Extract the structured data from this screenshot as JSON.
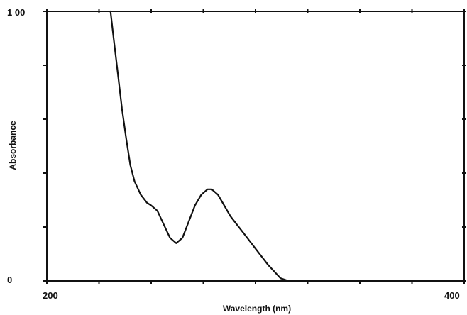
{
  "chart_data": {
    "type": "line",
    "title": "",
    "xlabel": "Wavelength (nm)",
    "ylabel": "Absorbance",
    "xlim": [
      200,
      400
    ],
    "ylim": [
      0,
      1.0
    ],
    "x_tick_labels": [
      "200",
      "400"
    ],
    "y_tick_labels": [
      "0",
      "1 00"
    ],
    "grid": false,
    "legend": "none",
    "line_color": "#111111",
    "series": [
      {
        "x": [
          230.5,
          232,
          234,
          236,
          238,
          240,
          242,
          245,
          248,
          250,
          253,
          256,
          259,
          262,
          265,
          268,
          271,
          274,
          277,
          279,
          282,
          285,
          288,
          291,
          294,
          297,
          300,
          303,
          306,
          309,
          312,
          315,
          318,
          320
        ],
        "y": [
          1.0,
          0.9,
          0.77,
          0.64,
          0.53,
          0.43,
          0.37,
          0.32,
          0.29,
          0.28,
          0.26,
          0.21,
          0.16,
          0.14,
          0.16,
          0.22,
          0.28,
          0.32,
          0.34,
          0.34,
          0.32,
          0.28,
          0.24,
          0.21,
          0.18,
          0.15,
          0.12,
          0.09,
          0.06,
          0.035,
          0.01,
          0.002,
          0.0,
          0.0
        ]
      },
      {
        "x": [
          320,
          335,
          350
        ],
        "y": [
          0.002,
          0.002,
          0.0
        ]
      }
    ]
  }
}
